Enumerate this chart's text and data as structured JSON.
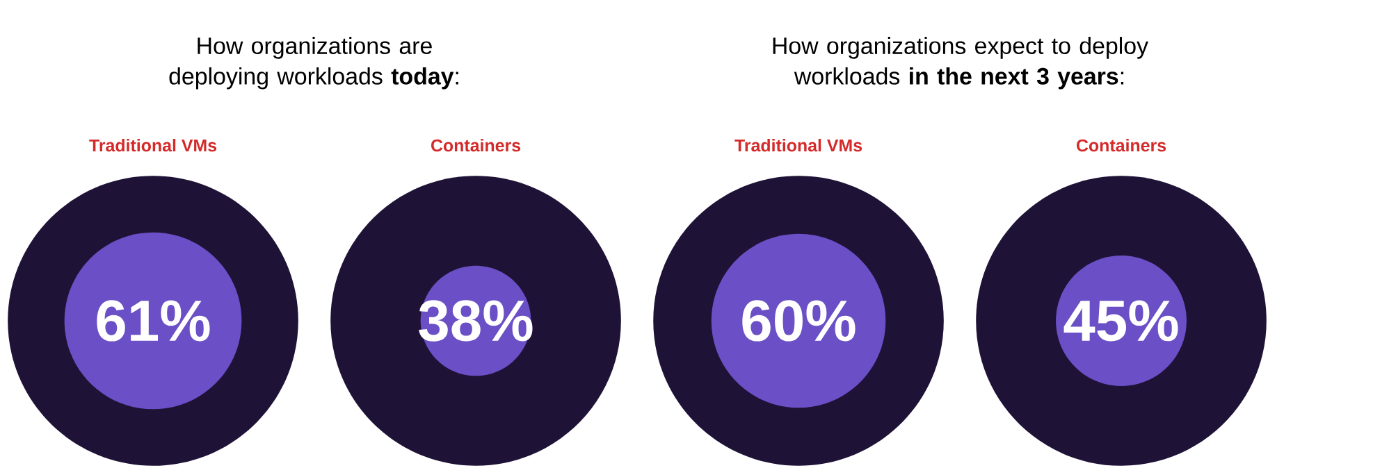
{
  "chart_data": [
    {
      "type": "other",
      "title": "How organizations are deploying workloads **today**:",
      "categories": [
        "Traditional VMs",
        "Containers"
      ],
      "series": [
        {
          "color": "#6a4fc6",
          "values": [
            61,
            38
          ],
          "value_labels": [
            "61%",
            "38%"
          ]
        }
      ]
    },
    {
      "type": "other",
      "title": "How organizations expect to deploy workloads **in the next 3 years**:",
      "categories": [
        "Traditional VMs",
        "Containers"
      ],
      "series": [
        {
          "color": "#6a4fc6",
          "values": [
            60,
            45
          ],
          "value_labels": [
            "60%",
            "45%"
          ]
        }
      ]
    }
  ]
}
